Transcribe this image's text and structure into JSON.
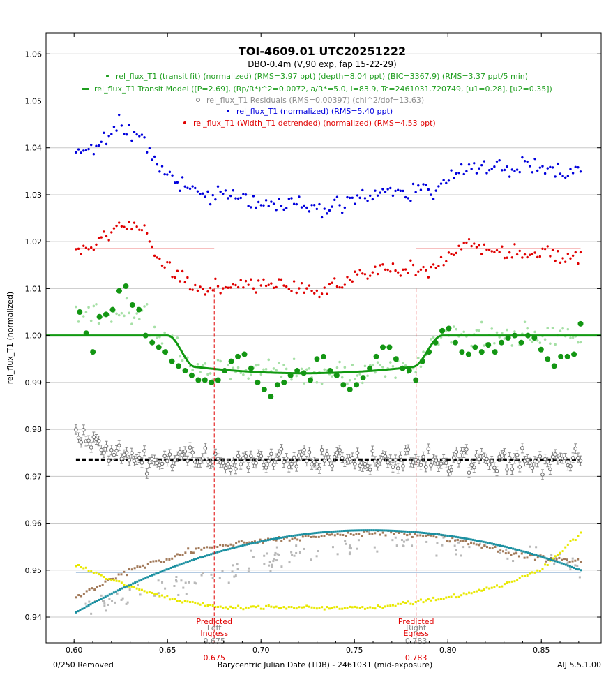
{
  "chart_data": {
    "type": "scatter",
    "title": "TOI-4609.01  UTC20251222",
    "subtitle": "DBO-0.4m (V,90 exp, fap 15-22-29)",
    "xlabel": "Barycentric Julian Date (TDB) - 2461031 (mid-exposure)",
    "ylabel": "rel_flux_T1 (normalized)",
    "footer_left": "0/250 Removed",
    "footer_right": "AIJ 5.5.1.00",
    "xlim": [
      0.585,
      0.882
    ],
    "ylim": [
      0.9345,
      1.0645
    ],
    "xticks": [
      0.6,
      0.65,
      0.7,
      0.75,
      0.8,
      0.85
    ],
    "xtick_labels": [
      "0.60",
      "0.65",
      "0.70",
      "0.75",
      "0.80",
      "0.85"
    ],
    "yticks": [
      0.94,
      0.95,
      0.96,
      0.97,
      0.98,
      0.99,
      1.0,
      1.01,
      1.02,
      1.03,
      1.04,
      1.05,
      1.06
    ],
    "ytick_labels": [
      "0.94",
      "0.95",
      "0.96",
      "0.97",
      "0.98",
      "0.99",
      "1.00",
      "1.01",
      "1.02",
      "1.03",
      "1.04",
      "1.05",
      "1.06"
    ],
    "grid": true,
    "legend": [
      {
        "text": "rel_flux_T1 (transit fit) (normalized) (RMS=3.97 ppt) (depth=8.04 ppt) (BIC=3367.9) (RMS=3.37 ppt/5 min)",
        "color": "#1f9e1f",
        "marker": "dot"
      },
      {
        "text": "rel_flux_T1 Transit Model ([P=2.69], (Rp/R*)^2=0.0072, a/R*=5.0, i=83.9, Tc=2461031.720749, [u1=0.28], [u2=0.35])",
        "color": "#1f9e1f",
        "marker": "line"
      },
      {
        "text": "rel_flux_T1 Residuals (RMS=0.00397) (chi^2/dof=13.63)",
        "color": "#8c8c8c",
        "marker": "circle"
      },
      {
        "text": "rel_flux_T1 (normalized) (RMS=5.40 ppt)",
        "color": "#0000dd",
        "marker": "dot"
      },
      {
        "text": "rel_flux_T1 (Width_T1 detrended) (normalized) (RMS=4.53 ppt)",
        "color": "#e00000",
        "marker": "dot"
      }
    ],
    "markers": [
      {
        "x": 0.675,
        "line1": "Predicted",
        "line2": "Ingress",
        "gray_top": "Left",
        "gray_bottom": "0.675",
        "red_value": "0.675"
      },
      {
        "x": 0.783,
        "line1": "Predicted",
        "line2": "Egress",
        "gray_top": "Right",
        "gray_bottom": "0.783",
        "red_value": "0.783"
      }
    ],
    "model": {
      "t1": 0.65,
      "t2": 0.665,
      "t3": 0.781,
      "t4": 0.797,
      "depth_mid": 0.00804,
      "depth_edge": 0.0067
    },
    "series_profiles": {
      "blue_normalized": {
        "name": "rel_flux_T1 (normalized)",
        "x_start": 0.601,
        "x_end": 0.871,
        "n": 200,
        "noise": 0.003,
        "knots_x": [
          0.601,
          0.612,
          0.625,
          0.638,
          0.65,
          0.67,
          0.7,
          0.73,
          0.76,
          0.79,
          0.81,
          0.84,
          0.871
        ],
        "knots_y": [
          1.038,
          1.04,
          1.045,
          1.041,
          1.034,
          1.03,
          1.029,
          1.027,
          1.03,
          1.031,
          1.036,
          1.036,
          1.035
        ]
      },
      "red_detrended": {
        "name": "rel_flux_T1 (Width_T1 detrended) (normalized)",
        "x_start": 0.601,
        "x_end": 0.871,
        "n": 200,
        "noise": 0.0028,
        "knots_x": [
          0.601,
          0.612,
          0.625,
          0.638,
          0.65,
          0.67,
          0.7,
          0.73,
          0.76,
          0.79,
          0.81,
          0.84,
          0.871
        ],
        "knots_y": [
          1.018,
          1.02,
          1.024,
          1.022,
          1.014,
          1.01,
          1.011,
          1.009,
          1.014,
          1.014,
          1.019,
          1.017,
          1.017
        ]
      },
      "red_baseline_level": 1.0185,
      "red_baseline_segments": [
        [
          0.601,
          0.675
        ],
        [
          0.783,
          0.871
        ]
      ],
      "green_binned_values": [
        1.005,
        1.0005,
        0.9965,
        1.004,
        1.0045,
        1.0055,
        1.0095,
        1.0105,
        1.0065,
        1.0055,
        1.0,
        0.9985,
        0.9975,
        0.9965,
        0.9945,
        0.9935,
        0.9925,
        0.9915,
        0.9905,
        0.9905,
        0.99,
        0.9905,
        0.9925,
        0.9945,
        0.9955,
        0.996,
        0.993,
        0.99,
        0.9885,
        0.987,
        0.9895,
        0.99,
        0.9915,
        0.9925,
        0.992,
        0.9905,
        0.995,
        0.9955,
        0.9925,
        0.9915,
        0.9895,
        0.9885,
        0.9895,
        0.991,
        0.993,
        0.9955,
        0.9975,
        0.9975,
        0.995,
        0.993,
        0.9925,
        0.9905,
        0.9945,
        0.9965,
        0.9985,
        1.001,
        1.0015,
        0.9985,
        0.9965,
        0.996,
        0.9975,
        0.9965,
        0.998,
        0.9965,
        0.9985,
        0.9995,
        1.0,
        0.9985,
        1.0,
        0.9995,
        0.997,
        0.995,
        0.9935,
        0.9955,
        0.9955,
        0.996,
        1.0025
      ],
      "residual_offset": 0.9735,
      "residual_noise": 0.0035,
      "yellow": {
        "knots_x": [
          0.601,
          0.62,
          0.65,
          0.68,
          0.72,
          0.76,
          0.8,
          0.83,
          0.85,
          0.871
        ],
        "knots_y": [
          0.951,
          0.948,
          0.944,
          0.942,
          0.942,
          0.942,
          0.944,
          0.947,
          0.95,
          0.958
        ],
        "noise": 0.0006
      },
      "teal": {
        "peak_x": 0.758,
        "peak_y": 0.9585,
        "start_x": 0.601,
        "start_y": 0.941,
        "end_x": 0.871,
        "end_y": 0.95
      },
      "brown": {
        "knots_x": [
          0.601,
          0.63,
          0.67,
          0.72,
          0.76,
          0.8,
          0.84,
          0.871
        ],
        "knots_y": [
          0.944,
          0.95,
          0.955,
          0.957,
          0.958,
          0.957,
          0.953,
          0.952
        ],
        "noise": 0.0009
      },
      "gray_scatter": {
        "knots_x": [
          0.601,
          0.65,
          0.7,
          0.75,
          0.8,
          0.85,
          0.871
        ],
        "knots_y": [
          0.942,
          0.946,
          0.952,
          0.955,
          0.956,
          0.954,
          0.951
        ],
        "noise": 0.0035
      },
      "hline_level": 0.9495
    }
  }
}
